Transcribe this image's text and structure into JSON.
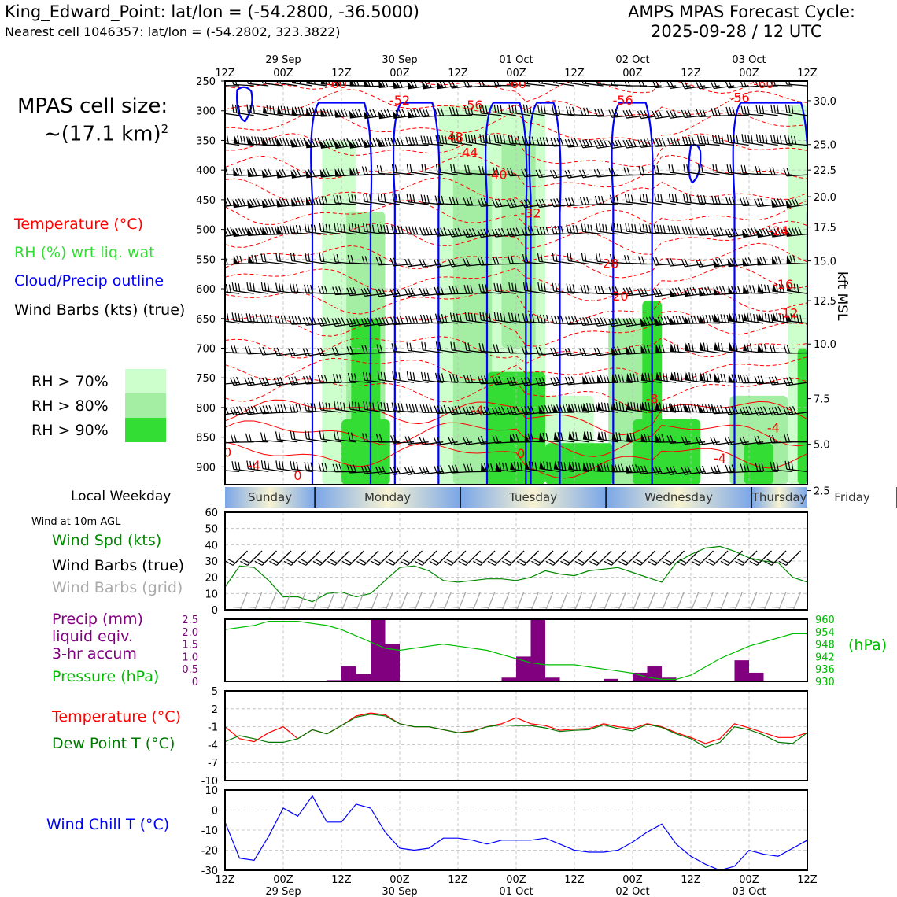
{
  "header": {
    "station": "King_Edward_Point: lat/lon = (-54.2800, -36.5000)",
    "nearest_cell": "Nearest cell 1046357: lat/lon = (-54.2802, 323.3822)",
    "forecast_title": "AMPS MPAS Forecast Cycle:",
    "forecast_cycle": "2025-09-28 / 12 UTC"
  },
  "side_labels": {
    "cell_size_title": "MPAS cell size:",
    "cell_size_value": "~(17.1 km)",
    "cell_size_sup": "2",
    "legend_temperature": "Temperature (°C)",
    "legend_rh": "RH (%) wrt liq. wat",
    "legend_cloud": "Cloud/Precip outline",
    "legend_wind": "Wind Barbs (kts) (true)",
    "rh_70": "RH > 70%",
    "rh_80": "RH > 80%",
    "rh_90": "RH > 90%",
    "local_weekday": "Local Weekday",
    "wind_10m": "Wind at 10m AGL",
    "wind_spd": "Wind Spd (kts)",
    "wind_barbs_true": "Wind Barbs (true)",
    "wind_barbs_grid": "Wind Barbs (grid)",
    "precip_1": "Precip (mm)",
    "precip_2": "liquid eqiv.",
    "precip_3": "3-hr accum",
    "pressure": "Pressure (hPa)",
    "pressure_unit": "(hPa)",
    "temp": "Temperature (°C)",
    "dewpoint": "Dew Point T (°C)",
    "windchill": "Wind Chill T (°C)",
    "kft_msl": "kft MSL"
  },
  "colors": {
    "temperature": "#ff0000",
    "rh": "#33dd33",
    "rh70": "#ccffcc",
    "rh80": "#a3eea3",
    "rh90": "#33dd33",
    "cloud": "#0000ff",
    "pressure": "#00bb00",
    "precip": "#800080",
    "dewpoint": "#007700",
    "windchill": "#0000ff",
    "barbs_grid": "#aaaaaa"
  },
  "time_axis": {
    "top_labels": [
      "12Z",
      "00Z",
      "12Z",
      "00Z",
      "12Z",
      "00Z",
      "12Z",
      "00Z",
      "12Z",
      "00Z",
      "12Z"
    ],
    "dates": [
      "29 Sep",
      "30 Sep",
      "01 Oct",
      "02 Oct",
      "03 Oct"
    ],
    "weekdays": [
      "Sunday",
      "Monday",
      "Tuesday",
      "Wednesday",
      "Thursday",
      "Friday"
    ]
  },
  "chart_data": [
    {
      "type": "heatmap",
      "name": "time-height cross section",
      "x_hours_since_cycle": [
        0,
        120
      ],
      "pressure_axis_hPa": [
        250,
        300,
        350,
        400,
        450,
        500,
        550,
        600,
        650,
        700,
        750,
        800,
        850,
        900
      ],
      "pressure_range": [
        250,
        930
      ],
      "height_axis_kft": [
        "30.0",
        "25.0",
        "22.5",
        "20.0",
        "17.5",
        "15.0",
        "12.5",
        "10.0",
        "7.5",
        "5.0",
        "2.5"
      ],
      "height_axis_pressure_hPa": [
        283,
        357,
        400,
        445,
        496,
        553,
        620,
        693,
        785,
        862,
        940
      ],
      "temperature_contour_labels": [
        {
          "t": 23,
          "p": 262,
          "v": "-60"
        },
        {
          "t": 60,
          "p": 262,
          "v": "-60"
        },
        {
          "t": 111,
          "p": 262,
          "v": "-60"
        },
        {
          "t": 36,
          "p": 290,
          "v": "-52"
        },
        {
          "t": 82,
          "p": 290,
          "v": "-56"
        },
        {
          "t": 51,
          "p": 298,
          "v": "-56"
        },
        {
          "t": 106,
          "p": 285,
          "v": "-56"
        },
        {
          "t": 47,
          "p": 352,
          "v": "-48"
        },
        {
          "t": 50,
          "p": 378,
          "v": "-44"
        },
        {
          "t": 56,
          "p": 415,
          "v": "-40"
        },
        {
          "t": 63,
          "p": 480,
          "v": "-32"
        },
        {
          "t": 79,
          "p": 565,
          "v": "-28"
        },
        {
          "t": 81,
          "p": 620,
          "v": "-20"
        },
        {
          "t": 114,
          "p": 510,
          "v": "-24"
        },
        {
          "t": 115,
          "p": 600,
          "v": "-16"
        },
        {
          "t": 116,
          "p": 648,
          "v": "-12"
        },
        {
          "t": 88,
          "p": 793,
          "v": "-8"
        },
        {
          "t": 52,
          "p": 812,
          "v": "-4"
        },
        {
          "t": 113,
          "p": 842,
          "v": "-4"
        },
        {
          "t": 0.5,
          "p": 883,
          "v": "0"
        },
        {
          "t": 6,
          "p": 905,
          "v": "-4"
        },
        {
          "t": 15,
          "p": 922,
          "v": "0"
        },
        {
          "t": 61,
          "p": 885,
          "v": "0"
        },
        {
          "t": 102,
          "p": 893,
          "v": "-4"
        }
      ],
      "rh_regions": [
        {
          "level": 70,
          "t": [
            20,
            27
          ],
          "p": [
            350,
            930
          ]
        },
        {
          "level": 80,
          "t": [
            25,
            33
          ],
          "p": [
            470,
            930
          ]
        },
        {
          "level": 90,
          "t": [
            26,
            32
          ],
          "p": [
            650,
            930
          ]
        },
        {
          "level": 90,
          "t": [
            24,
            34
          ],
          "p": [
            820,
            930
          ]
        },
        {
          "level": 70,
          "t": [
            44,
            56
          ],
          "p": [
            290,
            930
          ]
        },
        {
          "level": 80,
          "t": [
            47,
            55
          ],
          "p": [
            400,
            930
          ]
        },
        {
          "level": 70,
          "t": [
            55,
            66
          ],
          "p": [
            300,
            760
          ]
        },
        {
          "level": 80,
          "t": [
            57,
            64
          ],
          "p": [
            350,
            700
          ]
        },
        {
          "level": 90,
          "t": [
            54,
            66
          ],
          "p": [
            740,
            930
          ]
        },
        {
          "level": 70,
          "t": [
            66,
            76
          ],
          "p": [
            780,
            930
          ]
        },
        {
          "level": 90,
          "t": [
            66,
            80
          ],
          "p": [
            860,
            930
          ]
        },
        {
          "level": 80,
          "t": [
            79,
            90
          ],
          "p": [
            650,
            930
          ]
        },
        {
          "level": 90,
          "t": [
            86,
            90
          ],
          "p": [
            620,
            930
          ]
        },
        {
          "level": 90,
          "t": [
            84,
            98
          ],
          "p": [
            820,
            930
          ]
        },
        {
          "level": 80,
          "t": [
            104,
            116
          ],
          "p": [
            780,
            930
          ]
        },
        {
          "level": 90,
          "t": [
            107,
            113
          ],
          "p": [
            860,
            930
          ]
        },
        {
          "level": 70,
          "t": [
            116,
            120
          ],
          "p": [
            290,
            930
          ]
        },
        {
          "level": 90,
          "t": [
            118,
            120
          ],
          "p": [
            700,
            930
          ]
        }
      ],
      "cloud_outline_columns": [
        [
          18,
          30
        ],
        [
          35,
          44
        ],
        [
          54,
          62
        ],
        [
          63,
          69
        ],
        [
          80,
          88
        ],
        [
          105,
          120
        ]
      ]
    },
    {
      "type": "line",
      "name": "Wind Spd (kts)",
      "x_hours": [
        0,
        3,
        6,
        9,
        12,
        15,
        18,
        21,
        24,
        27,
        30,
        33,
        36,
        39,
        42,
        45,
        48,
        51,
        54,
        57,
        60,
        63,
        66,
        69,
        72,
        75,
        78,
        81,
        84,
        87,
        90,
        93,
        96,
        99,
        102,
        105,
        108,
        111,
        114,
        117,
        120
      ],
      "values": [
        14,
        27,
        26,
        18,
        8,
        8,
        5,
        10,
        11,
        8,
        10,
        18,
        26,
        27,
        24,
        18,
        17,
        18,
        19,
        19,
        18,
        20,
        24,
        22,
        21,
        24,
        25,
        26,
        23,
        20,
        17,
        29,
        34,
        38,
        39,
        36,
        32,
        30,
        29,
        20,
        17
      ],
      "ylim": [
        0,
        60
      ],
      "yticks": [
        "0",
        "10",
        "20",
        "30",
        "40",
        "50",
        "60"
      ],
      "barbs_true_present": true,
      "barbs_grid_present": true
    },
    {
      "type": "bar",
      "name": "Precip (mm) liquid eqiv. 3-hr accum",
      "x_hours": [
        21,
        24,
        27,
        30,
        33,
        36,
        57,
        60,
        63,
        66,
        69,
        78,
        84,
        87,
        90,
        105,
        108
      ],
      "values": [
        0.05,
        0.6,
        0.3,
        2.5,
        1.5,
        0.0,
        0.15,
        1.0,
        2.5,
        0.15,
        0.0,
        0.1,
        0.35,
        0.6,
        0.15,
        0.85,
        0.35
      ],
      "ylim": [
        0,
        2.5
      ],
      "yticks": [
        "0",
        "0.5",
        "1.0",
        "1.5",
        "2.0",
        "2.5"
      ],
      "pressure_series": {
        "name": "Pressure (hPa)",
        "x_hours": [
          0,
          6,
          9,
          12,
          15,
          18,
          21,
          24,
          27,
          30,
          33,
          36,
          42,
          45,
          48,
          54,
          57,
          60,
          63,
          66,
          69,
          72,
          75,
          78,
          81,
          84,
          87,
          90,
          93,
          96,
          99,
          102,
          105,
          108,
          111,
          114,
          117,
          120
        ],
        "values": [
          955,
          957,
          959,
          959,
          959,
          958,
          957,
          955,
          952,
          949,
          946,
          945,
          947,
          948,
          947,
          945,
          943,
          941,
          939,
          938,
          938,
          938,
          937,
          936,
          935,
          934,
          932,
          931,
          931,
          933,
          937,
          941,
          944,
          947,
          949,
          951,
          953,
          953
        ],
        "ylim": [
          930,
          960
        ],
        "yticks": [
          "930",
          "936",
          "942",
          "948",
          "954",
          "960"
        ]
      }
    },
    {
      "type": "line",
      "name": "Temperature / Dew Point T (°C)",
      "x_hours": [
        0,
        3,
        6,
        9,
        12,
        15,
        18,
        21,
        24,
        27,
        30,
        33,
        36,
        39,
        42,
        45,
        48,
        51,
        54,
        57,
        60,
        63,
        66,
        69,
        72,
        75,
        78,
        81,
        84,
        87,
        90,
        93,
        96,
        99,
        102,
        105,
        108,
        111,
        114,
        117,
        120
      ],
      "series": [
        {
          "name": "Temperature (°C)",
          "values": [
            -1,
            -3,
            -3.5,
            -2,
            -1,
            -3,
            -1.5,
            -2.2,
            -0.8,
            0.8,
            1.3,
            1.0,
            -0.5,
            -1.0,
            -1.0,
            -1.5,
            -2.0,
            -1.7,
            -1.0,
            -0.5,
            0.5,
            -0.5,
            -0.8,
            -1.6,
            -1.4,
            -1.3,
            -0.5,
            -1.0,
            -1.3,
            -0.5,
            -1.0,
            -2.0,
            -2.8,
            -3.8,
            -3.0,
            -0.5,
            -1.2,
            -2.0,
            -2.8,
            -2.8,
            -2.0
          ]
        },
        {
          "name": "Dew Point T (°C)",
          "values": [
            -3.5,
            -2.5,
            -3.0,
            -3.6,
            -3.6,
            -3.0,
            -1.5,
            -2.2,
            -0.8,
            0.6,
            1.1,
            0.8,
            -0.5,
            -1.0,
            -1.0,
            -1.5,
            -2.0,
            -1.8,
            -1.0,
            -0.7,
            -0.8,
            -0.8,
            -1.2,
            -1.8,
            -1.6,
            -1.5,
            -0.7,
            -1.3,
            -1.7,
            -0.6,
            -1.1,
            -2.2,
            -3.0,
            -4.4,
            -3.6,
            -1.0,
            -1.5,
            -2.4,
            -3.6,
            -3.8,
            -2.0
          ]
        }
      ],
      "ylim": [
        -10,
        5
      ],
      "yticks": [
        "-10",
        "-7",
        "-4",
        "-1",
        "2",
        "5"
      ]
    },
    {
      "type": "line",
      "name": "Wind Chill T (°C)",
      "x_hours": [
        0,
        3,
        6,
        9,
        12,
        15,
        18,
        21,
        24,
        27,
        30,
        33,
        36,
        39,
        42,
        45,
        48,
        51,
        54,
        57,
        60,
        63,
        66,
        69,
        72,
        75,
        78,
        81,
        84,
        87,
        90,
        93,
        96,
        99,
        102,
        105,
        108,
        111,
        114,
        117,
        120
      ],
      "values": [
        -6,
        -24,
        -25,
        -13,
        1,
        -3,
        7,
        -6,
        -6,
        3,
        1,
        -11,
        -19,
        -20,
        -19,
        -14,
        -14,
        -15,
        -17,
        -15,
        -15,
        -15,
        -14,
        -17,
        -20,
        -21,
        -21,
        -20,
        -16,
        -11,
        -7,
        -17,
        -23,
        -27,
        -30,
        -28,
        -20,
        -22,
        -23,
        -19,
        -15
      ],
      "ylim": [
        -30,
        10
      ],
      "yticks": [
        "-30",
        "-20",
        "-10",
        "0",
        "10"
      ]
    }
  ]
}
